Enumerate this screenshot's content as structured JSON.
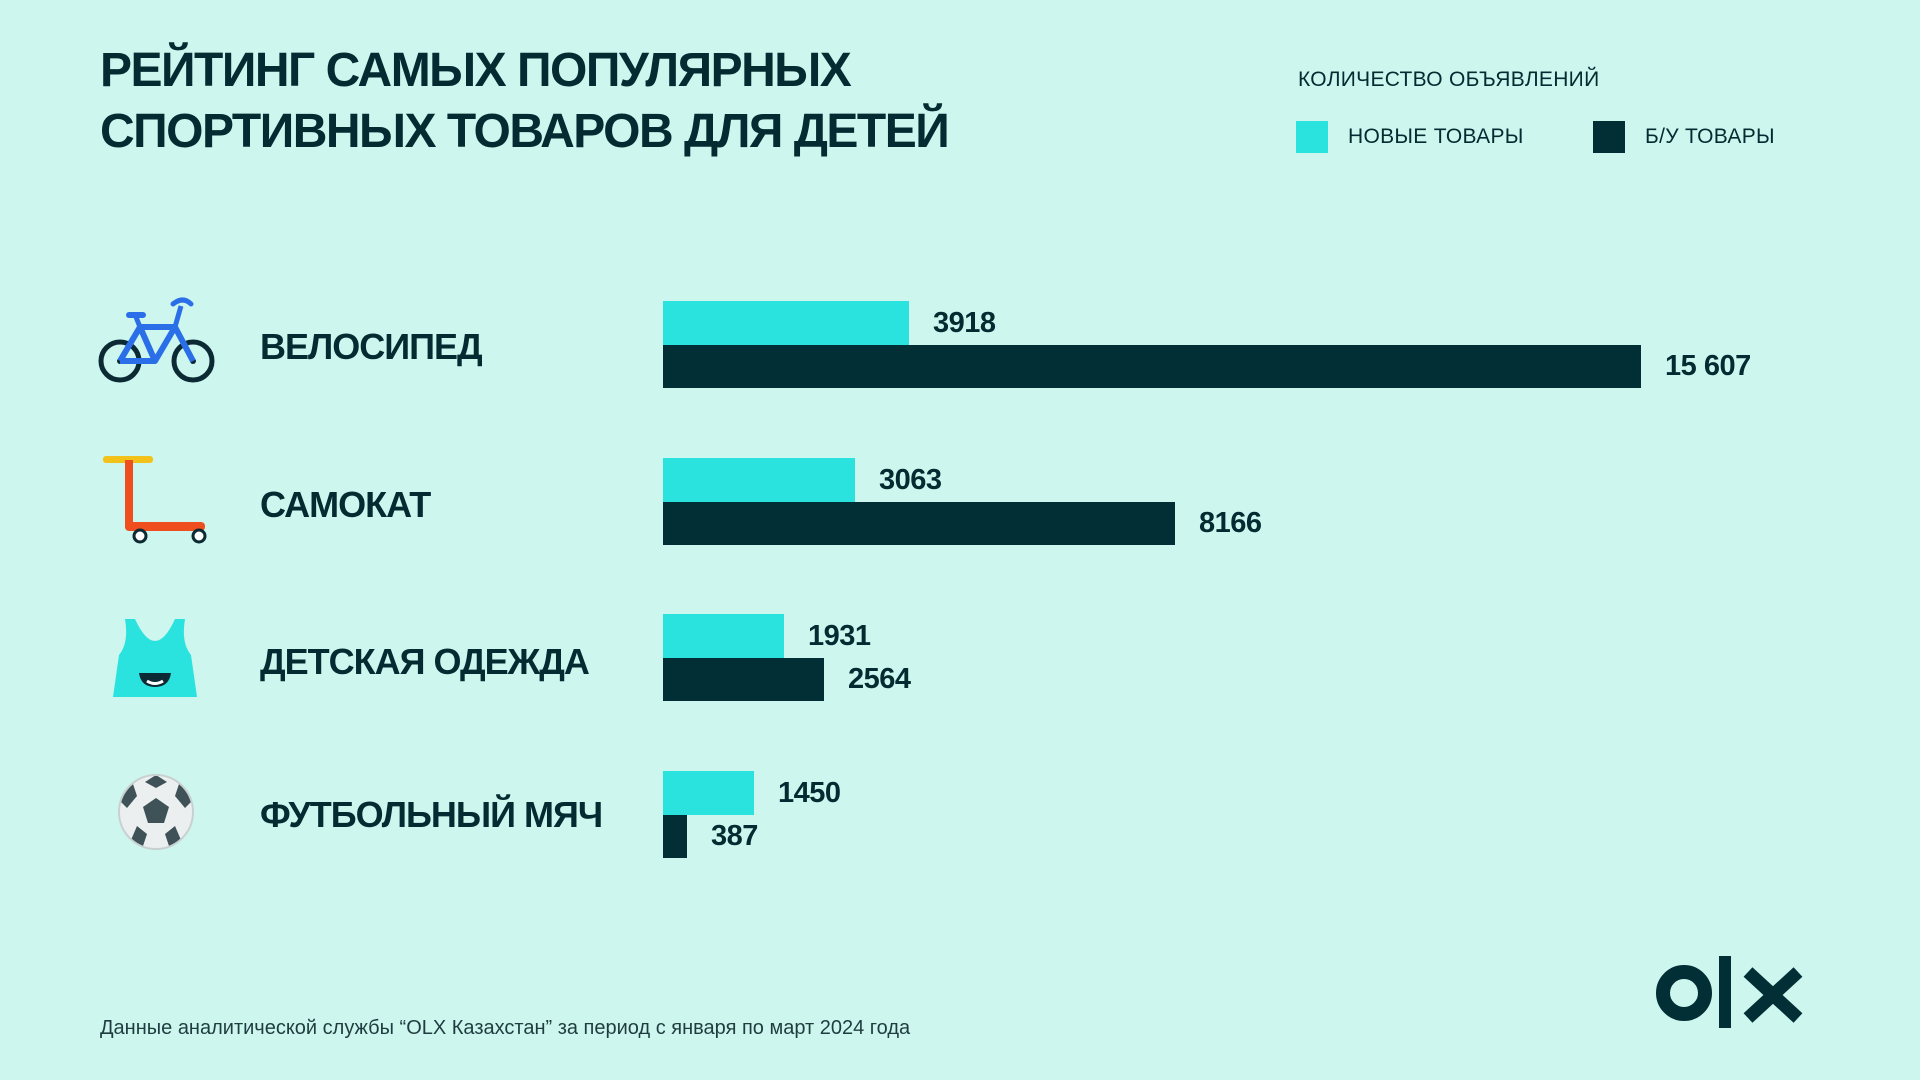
{
  "title_lines": [
    "РЕЙТИНГ САМЫХ ПОПУЛЯРНЫХ",
    "СПОРТИВНЫХ ТОВАРОВ ДЛЯ ДЕТЕЙ"
  ],
  "legend": {
    "title": "КОЛИЧЕСТВО ОБЪЯВЛЕНИЙ",
    "items": [
      {
        "label": "НОВЫЕ ТОВАРЫ",
        "color": "#2ae3de"
      },
      {
        "label": "Б/У ТОВАРЫ",
        "color": "#022e35"
      }
    ]
  },
  "rows": [
    {
      "label": "ВЕЛОСИПЕД",
      "icon": "bicycle-icon",
      "new_label": "3918",
      "used_label": "15 607"
    },
    {
      "label": "САМОКАТ",
      "icon": "scooter-icon",
      "new_label": "3063",
      "used_label": "8166"
    },
    {
      "label": "ДЕТСКАЯ ОДЕЖДА",
      "icon": "tank-top-icon",
      "new_label": "1931",
      "used_label": "2564"
    },
    {
      "label": "ФУТБОЛЬНЫЙ МЯЧ",
      "icon": "soccer-ball-icon",
      "new_label": "1450",
      "used_label": "387"
    }
  ],
  "chart_data": {
    "type": "bar",
    "orientation": "horizontal",
    "title": "РЕЙТИНГ САМЫХ ПОПУЛЯРНЫХ СПОРТИВНЫХ ТОВАРОВ ДЛЯ ДЕТЕЙ",
    "categories": [
      "ВЕЛОСИПЕД",
      "САМОКАТ",
      "ДЕТСКАЯ ОДЕЖДА",
      "ФУТБОЛЬНЫЙ МЯЧ"
    ],
    "series": [
      {
        "name": "НОВЫЕ ТОВАРЫ",
        "values": [
          3918,
          3063,
          1931,
          1450
        ],
        "color": "#2ae3de"
      },
      {
        "name": "Б/У ТОВАРЫ",
        "values": [
          15607,
          8166,
          2564,
          387
        ],
        "color": "#022e35"
      }
    ],
    "legend_title": "КОЛИЧЕСТВО ОБЪЯВЛЕНИЙ",
    "legend_position": "top-right",
    "grid": false,
    "xlim": [
      0,
      15607
    ]
  },
  "footnote": "Данные аналитической службы “OLX Казахстан” за период с января по март 2024 года",
  "logo_text": "OLX",
  "colors": {
    "background": "#ccf6ee",
    "text": "#032b31"
  }
}
